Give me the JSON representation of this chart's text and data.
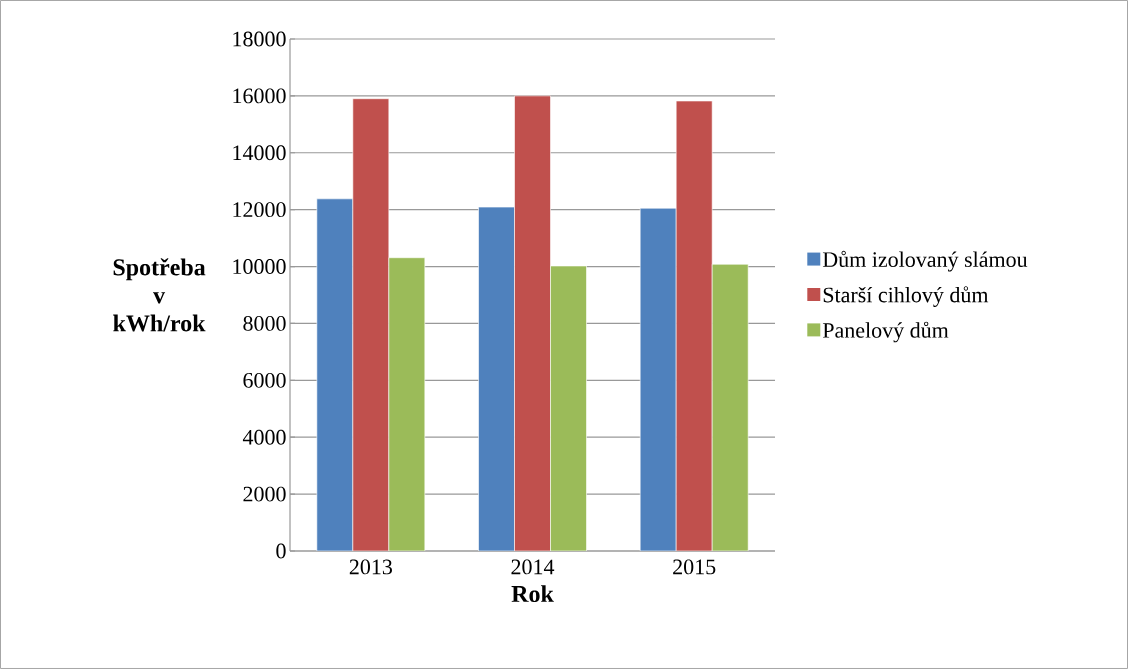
{
  "chart_data": {
    "type": "bar",
    "xlabel": "Rok",
    "ylabel": "Spotřeba v kWh/rok",
    "categories": [
      "2013",
      "2014",
      "2015"
    ],
    "series": [
      {
        "name": "Dům izolovaný slámou",
        "color": "#4f81bd",
        "values": [
          12380,
          12090,
          12050
        ]
      },
      {
        "name": "Starší cihlový dům",
        "color": "#c0504d",
        "values": [
          15900,
          16000,
          15820
        ]
      },
      {
        "name": "Panelový dům",
        "color": "#9bbb59",
        "values": [
          10310,
          10020,
          10080
        ]
      }
    ],
    "ylim": [
      0,
      18000
    ],
    "yticks": [
      0,
      2000,
      4000,
      6000,
      8000,
      10000,
      12000,
      14000,
      16000,
      18000
    ],
    "grid": "y",
    "legend": "right"
  }
}
